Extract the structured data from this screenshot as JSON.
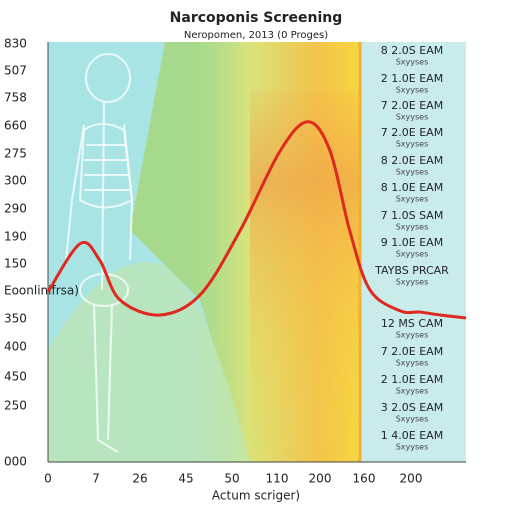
{
  "chart_data": {
    "type": "line",
    "title": "Narcoponis Screening",
    "subtitle": "Neropomen, 2013 (0 Proges)",
    "y_axis_label": "Eoonlinlfrsa)",
    "x_axis_label": "Actum scriger)",
    "y_labels": [
      "830",
      "507",
      "758",
      "660",
      "275",
      "300",
      "290",
      "190",
      "150",
      "350",
      "400",
      "450",
      "250",
      "000"
    ],
    "x_labels": [
      "0",
      "7",
      "26",
      "45",
      "50",
      "110",
      "200",
      "160",
      "200"
    ],
    "xlim": [
      0,
      100
    ],
    "ylim": [
      0,
      100
    ],
    "series": [
      {
        "color": "#e0281e",
        "x": [
          0,
          7.7,
          12.4,
          17.2,
          26.8,
          36.4,
          45.9,
          55.5,
          62.2,
          67.5,
          72.2,
          77,
          84.2,
          89,
          93.8,
          100
        ],
        "values": [
          40.5,
          52,
          48,
          38.6,
          35,
          39.8,
          55,
          74,
          81,
          74,
          55,
          41,
          36,
          35.7,
          35,
          34.3
        ]
      }
    ],
    "legend": [
      {
        "label": "8 2.0S EAM",
        "sub": "Sxyyses"
      },
      {
        "label": "2 1.0E EAM",
        "sub": "Sxyyses"
      },
      {
        "label": "7 2.0E EAM",
        "sub": "Sxyyses"
      },
      {
        "label": "7 2.0E EAM",
        "sub": "Sxyyses"
      },
      {
        "label": "8 2.0E EAM",
        "sub": "Sxyyses"
      },
      {
        "label": "8 1.0E EAM",
        "sub": "Sxyyses"
      },
      {
        "label": "7 1.0S SAM",
        "sub": "Sxyyses"
      },
      {
        "label": "9 1.0E EAM",
        "sub": "Sxyyses"
      },
      {
        "label": "TAYBS PRCAR",
        "sub": "Sxyyses"
      },
      {
        "label": "12 MS CAM",
        "sub": "Sxyyses"
      },
      {
        "label": "7 2.0E EAM",
        "sub": "Sxyyses"
      },
      {
        "label": "2 1.0E EAM",
        "sub": "Sxyyses"
      },
      {
        "label": "3 2.0S EAM",
        "sub": "Sxyyses"
      },
      {
        "label": "1 4.0E EAM",
        "sub": "Sxyyses"
      }
    ]
  }
}
